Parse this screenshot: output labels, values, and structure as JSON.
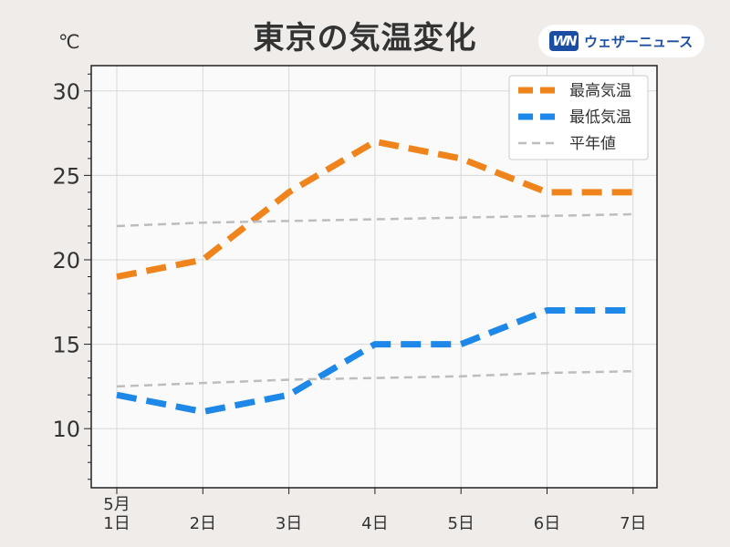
{
  "header": {
    "title": "東京の気温変化",
    "unit": "℃",
    "logo_mark": "WN",
    "logo_text": "ウェザーニュース"
  },
  "colors": {
    "high": "#f0841c",
    "low": "#1e88e8",
    "normal": "#bdbdbd",
    "plot_bg": "#fbfafa",
    "grid": "#d8d8d8"
  },
  "chart_data": {
    "type": "line",
    "title": "東京の気温変化",
    "ylabel": "℃",
    "xlabel": "",
    "categories": [
      "5月\n1日",
      "2日",
      "3日",
      "4日",
      "5日",
      "6日",
      "7日"
    ],
    "ylim": [
      6.5,
      31.5
    ],
    "yticks": [
      10,
      15,
      20,
      25,
      30
    ],
    "grid": true,
    "legend_position": "top-right",
    "series": [
      {
        "name": "最高気温",
        "values": [
          19,
          20,
          24,
          27,
          26,
          24,
          24
        ],
        "color": "#f0841c",
        "style": "dashed-thick"
      },
      {
        "name": "最低気温",
        "values": [
          12,
          11,
          12,
          15,
          15,
          17,
          17
        ],
        "color": "#1e88e8",
        "style": "dashed-thick"
      },
      {
        "name": "平年値",
        "values": [
          22.0,
          22.2,
          22.3,
          22.4,
          22.5,
          22.6,
          22.7
        ],
        "color": "#bdbdbd",
        "style": "dashed-thin"
      },
      {
        "values": [
          12.5,
          12.7,
          12.9,
          13.0,
          13.1,
          13.3,
          13.4
        ],
        "color": "#bdbdbd",
        "style": "dashed-thin"
      }
    ]
  }
}
